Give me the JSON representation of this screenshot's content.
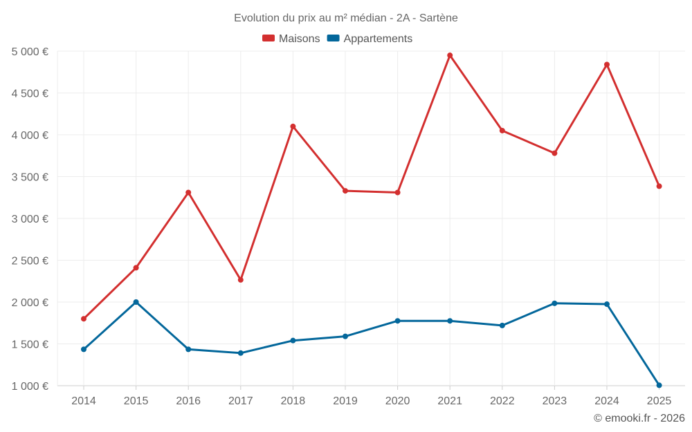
{
  "chart_data": {
    "type": "line",
    "title": "Evolution du prix au m² médian - 2A - Sartène",
    "categories": [
      "2014",
      "2015",
      "2016",
      "2017",
      "2018",
      "2019",
      "2020",
      "2021",
      "2022",
      "2023",
      "2024",
      "2025"
    ],
    "series": [
      {
        "name": "Maisons",
        "color": "#d32f2f",
        "values": [
          1800,
          2410,
          3310,
          2265,
          4100,
          3330,
          3310,
          4950,
          4050,
          3780,
          4840,
          3385
        ]
      },
      {
        "name": "Appartements",
        "color": "#03679b",
        "values": [
          1435,
          2000,
          1435,
          1390,
          1540,
          1590,
          1775,
          1775,
          1720,
          1985,
          1975,
          1005
        ]
      }
    ],
    "ylim": [
      1000,
      5000
    ],
    "yticks": [
      1000,
      1500,
      2000,
      2500,
      3000,
      3500,
      4000,
      4500,
      5000
    ],
    "ytick_labels": [
      "1 000 €",
      "1 500 €",
      "2 000 €",
      "2 500 €",
      "3 000 €",
      "3 500 €",
      "4 000 €",
      "4 500 €",
      "5 000 €"
    ],
    "grid": true,
    "legend_position": "top-center",
    "credit": "© emooki.fr - 2026"
  }
}
